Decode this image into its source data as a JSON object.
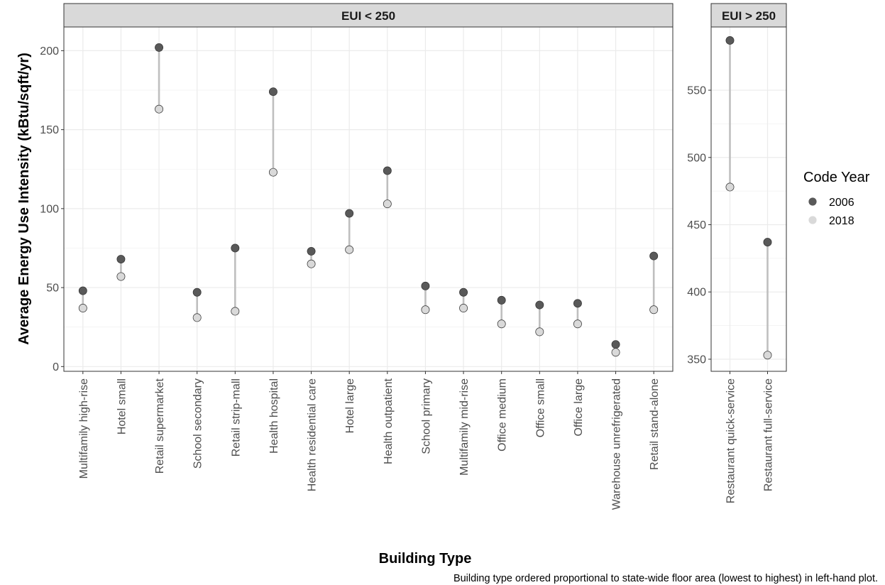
{
  "chart_data": {
    "type": "scatter",
    "subtype": "dumbbell",
    "panels": [
      {
        "strip_label": "EUI < 250",
        "categories": [
          "Multifamily high-rise",
          "Hotel small",
          "Retail supermarket",
          "School secondary",
          "Retail strip-mall",
          "Health hospital",
          "Health residential care",
          "Hotel large",
          "Health outpatient",
          "School primary",
          "Multifamily mid-rise",
          "Office medium",
          "Office small",
          "Office large",
          "Warehouse unrefrigerated",
          "Retail stand-alone"
        ],
        "series": [
          {
            "name": "2006",
            "color": "#595959",
            "values": [
              48,
              68,
              202,
              47,
              75,
              174,
              73,
              97,
              124,
              51,
              47,
              42,
              39,
              40,
              14,
              70
            ]
          },
          {
            "name": "2018",
            "color": "#d9d9d9",
            "values": [
              37,
              57,
              163,
              31,
              35,
              123,
              65,
              74,
              103,
              36,
              37,
              27,
              22,
              27,
              9,
              36
            ]
          }
        ],
        "yticks": [
          0,
          50,
          100,
          150,
          200
        ],
        "ylim": [
          -3,
          215
        ]
      },
      {
        "strip_label": "EUI > 250",
        "categories": [
          "Restaurant quick-service",
          "Restaurant full-service"
        ],
        "series": [
          {
            "name": "2006",
            "color": "#595959",
            "values": [
              587,
              437
            ]
          },
          {
            "name": "2018",
            "color": "#d9d9d9",
            "values": [
              478,
              353
            ]
          }
        ],
        "yticks": [
          350,
          400,
          450,
          500,
          550
        ],
        "ylim": [
          341,
          597
        ]
      }
    ],
    "ylabel": "Average Energy Use Intensity (kBtu/sqft/yr)",
    "xlabel": "Building Type",
    "caption": "Building type ordered proportional to state-wide floor area (lowest to highest) in left-hand plot.",
    "legend": {
      "title": "Code Year",
      "position": "right",
      "items": [
        {
          "label": "2006",
          "color": "#595959"
        },
        {
          "label": "2018",
          "color": "#d9d9d9"
        }
      ]
    },
    "segment_color": "#bfbfbf",
    "grid": true,
    "theme": "bw"
  }
}
